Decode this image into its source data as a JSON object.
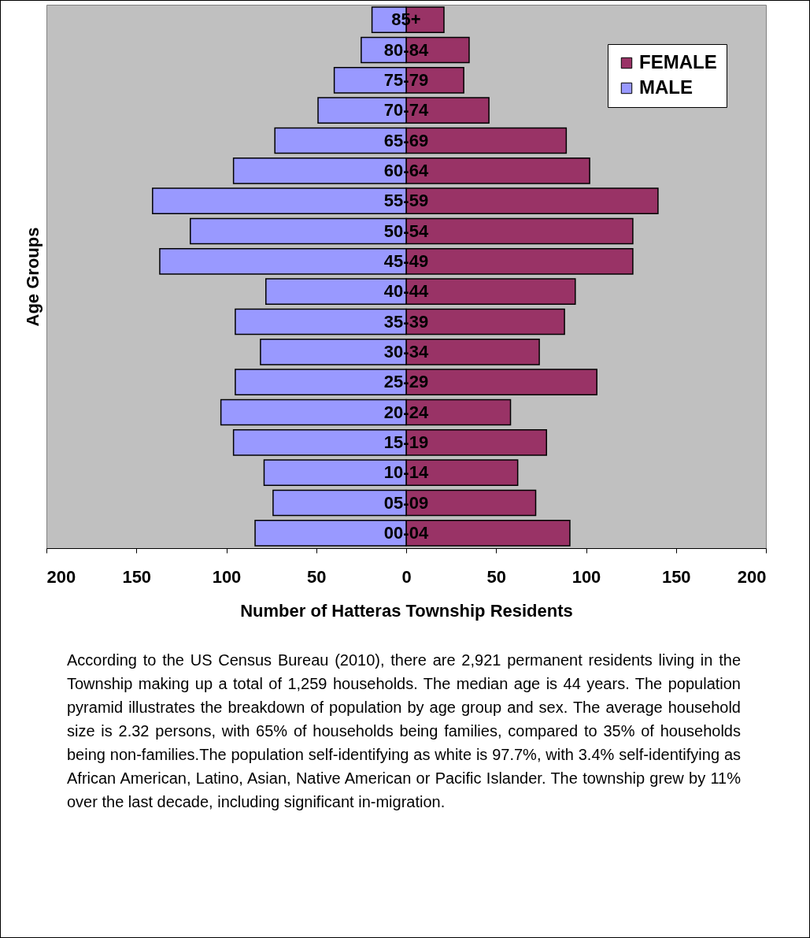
{
  "chart_data": {
    "type": "bar",
    "orientation": "horizontal",
    "xlabel": "Number of Hatteras Township Residents",
    "ylabel": "Age Groups",
    "categories": [
      "85+",
      "80-84",
      "75-79",
      "70-74",
      "65-69",
      "60-64",
      "55-59",
      "50-54",
      "45-49",
      "40-44",
      "35-39",
      "30-34",
      "25-29",
      "20-24",
      "15-19",
      "10-14",
      "05-09",
      "00-04"
    ],
    "series": [
      {
        "name": "FEMALE",
        "color": "#993366",
        "values": [
          21,
          35,
          32,
          46,
          89,
          102,
          140,
          126,
          126,
          94,
          88,
          74,
          106,
          58,
          78,
          62,
          72,
          91
        ]
      },
      {
        "name": "MALE",
        "color": "#9999ff",
        "values": [
          -19,
          -25,
          -40,
          -49,
          -73,
          -96,
          -141,
          -120,
          -137,
          -78,
          -95,
          -81,
          -95,
          -103,
          -96,
          -79,
          -74,
          -84
        ]
      }
    ],
    "xlim": [
      -200,
      200
    ],
    "xticks": [
      {
        "value": -200,
        "label": "200"
      },
      {
        "value": -150,
        "label": "150"
      },
      {
        "value": -100,
        "label": "100"
      },
      {
        "value": -50,
        "label": "50"
      },
      0,
      50,
      100,
      150,
      200
    ],
    "grid": false,
    "legend": "top right",
    "stacked": true,
    "annotations": [
      "According to the US Census Bureau (2010), there are 2,921 permanent residents living in the Township making up a total of 1,259 households. The median age is 44 years.  The population pyramid illustrates the breakdown of population by age group and sex.   The average household size is 2.32 persons, with 65% of households being families, compared to 35% of households being non-families.The population self-identifying as white is 97.7%, with 3.4% self-identifying as African American, Latino, Asian, Native American or Pacific Islander.  The township grew by 11% over the last decade, including significant in-migration."
    ]
  }
}
